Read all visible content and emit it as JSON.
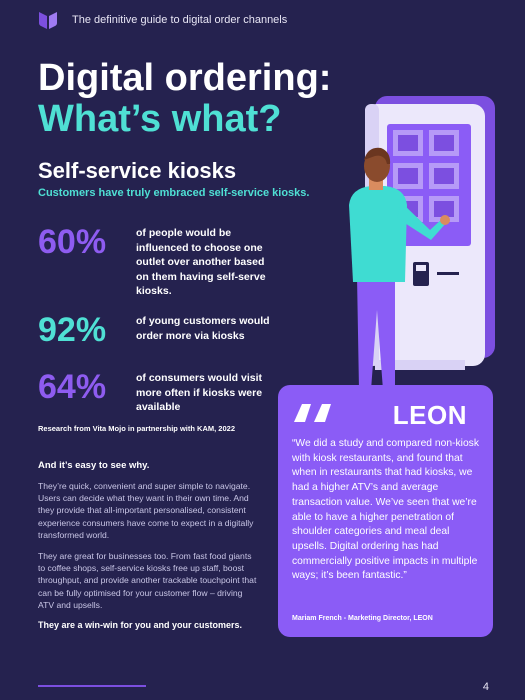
{
  "header": {
    "text": "The definitive guide to digital order channels"
  },
  "title": {
    "line1": "Digital ordering:",
    "line2": "What’s what?"
  },
  "section": {
    "title": "Self-service kiosks",
    "subtitle": "Customers have truly embraced self-service kiosks."
  },
  "stats": [
    {
      "value": "60%",
      "text": "of people would be influenced to choose one outlet over another based on them having self-serve kiosks."
    },
    {
      "value": "92%",
      "text": "of young customers would order more via kiosks"
    },
    {
      "value": "64%",
      "text": "of consumers would visit more often if kiosks were available"
    }
  ],
  "research": "Research from Vita Mojo in partnership with KAM, 2022",
  "body": {
    "lead": "And it’s easy to see why.",
    "para1": "They’re quick, convenient and super simple to navigate. Users can decide what they want in their own time. And they provide that all-important personalised, consistent experience consumers have come to expect in a digitally transformed world.",
    "para2": "They are great for businesses too. From fast food giants to coffee shops, self-service kiosks free up staff, boost throughput, and provide another trackable touchpoint that can be fully optimised for your customer flow – driving ATV and upsells.",
    "closing": "They are a win-win for you and your customers."
  },
  "quote": {
    "brand": "LEON",
    "text": "“We did a study and compared non-kiosk with kiosk restaurants, and found that when in restaurants that had kiosks, we had a higher ATV’s and average transaction value. We’ve seen that we’re able to have a higher penetration of shoulder categories and meal deal upsells. Digital ordering has had commercially positive impacts in multiple ways; it’s been fantastic.”",
    "attribution": "Mariam French - Marketing Director, LEON"
  },
  "footer": {
    "page_number": "4"
  },
  "colors": {
    "background": "#25224f",
    "accent_teal": "#4fe0d4",
    "accent_purple": "#8b5cf6"
  },
  "icons": {
    "logo": "brand-logo-icon",
    "quote": "quote-mark-icon"
  }
}
